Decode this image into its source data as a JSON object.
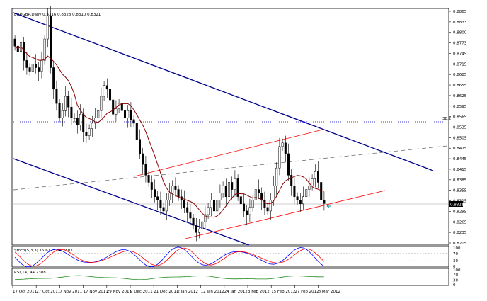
{
  "header": {
    "symbol_line": "EURGBP,Daily  0.8316 0.8328 0.8310 0.8321"
  },
  "colors": {
    "candle": "#000000",
    "ma": "#8b0000",
    "channel_upper": "#00008b",
    "channel_lower": "#00008b",
    "red_channel": "#ff0000",
    "grey_trend": "#808080",
    "level_line": "#0000cd",
    "stoch_main": "#0000ff",
    "stoch_signal": "#ff0000",
    "rsi": "#228b22",
    "arrow": "#008b8b"
  },
  "main_axis": {
    "ticks": [
      "0.8865",
      "0.8833",
      "0.8800",
      "0.8773",
      "0.8745",
      "0.8715",
      "0.8685",
      "0.8655",
      "0.8625",
      "0.8595",
      "0.8565",
      "0.8535",
      "0.8505",
      "0.8475",
      "0.8445",
      "0.8415",
      "0.8385",
      "0.8355",
      "0.8315",
      "0.8295",
      "0.8265",
      "0.8235",
      "0.8205"
    ],
    "price_badge": "0.8321",
    "level_label": "38.2"
  },
  "stoch": {
    "label": "Stoch(5,3,3) 15.6125 34.2507",
    "ticks": [
      "100",
      "70",
      "30",
      "0"
    ]
  },
  "rsi": {
    "label": "RSI(14) 44.2308",
    "ticks": [
      "100",
      "70",
      "30",
      "0"
    ]
  },
  "x_axis": {
    "labels": [
      "17 Oct 2011",
      "27 Oct 2011",
      "7 Nov 2011",
      "17 Nov 2011",
      "29 Nov 2011",
      "9 Dec 2011",
      "21 Dec 2011",
      "2 Jan 2012",
      "12 Jan 2012",
      "24 Jan 2012",
      "3 Feb 2012",
      "15 Feb 2012",
      "27 Feb 2012",
      "8 Mar 2012"
    ]
  },
  "chart_data": {
    "type": "candlestick",
    "title": "EURGBP,Daily  0.8316 0.8328 0.8310 0.8321",
    "ylim": [
      0.8205,
      0.8865
    ],
    "closes": [
      0.876,
      0.8745,
      0.877,
      0.872,
      0.87,
      0.869,
      0.871,
      0.87,
      0.869,
      0.872,
      0.878,
      0.8845,
      0.87,
      0.864,
      0.86,
      0.856,
      0.858,
      0.862,
      0.859,
      0.856,
      0.856,
      0.854,
      0.857,
      0.852,
      0.851,
      0.853,
      0.8545,
      0.856,
      0.858,
      0.862,
      0.865,
      0.864,
      0.861,
      0.857,
      0.8585,
      0.86,
      0.858,
      0.856,
      0.858,
      0.8555,
      0.8545,
      0.85,
      0.846,
      0.843,
      0.84,
      0.838,
      0.836,
      0.834,
      0.833,
      0.831,
      0.83,
      0.833,
      0.835,
      0.837,
      0.836,
      0.834,
      0.833,
      0.831,
      0.8295,
      0.828,
      0.826,
      0.824,
      0.825,
      0.827,
      0.829,
      0.831,
      0.833,
      0.83,
      0.833,
      0.835,
      0.837,
      0.834,
      0.838,
      0.836,
      0.839,
      0.834,
      0.832,
      0.83,
      0.829,
      0.831,
      0.833,
      0.836,
      0.835,
      0.833,
      0.831,
      0.83,
      0.833,
      0.837,
      0.842,
      0.848,
      0.849,
      0.846,
      0.84,
      0.837,
      0.834,
      0.833,
      0.832,
      0.834,
      0.836,
      0.837,
      0.839,
      0.841,
      0.838,
      0.833,
      0.8321
    ]
  }
}
